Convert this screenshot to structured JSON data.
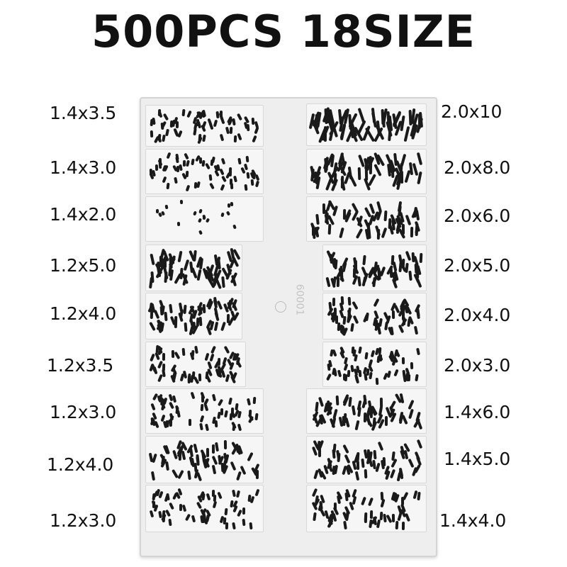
{
  "title": "500PCS 18SIZE",
  "tray_code": "60001",
  "left_sizes": [
    "1.4x3.5",
    "1.4x3.0",
    "1.4x2.0",
    "1.2x5.0",
    "1.2x4.0",
    "1.2x3.5",
    "1.2x3.0",
    "1.2x4.0",
    "1.2x3.0"
  ],
  "right_sizes": [
    "2.0x10",
    "2.0x8.0",
    "2.0x6.0",
    "2.0x5.0",
    "2.0x4.0",
    "2.0x3.0",
    "1.4x6.0",
    "1.4x5.0",
    "1.4x4.0"
  ],
  "colors": {
    "screw": "#1a1a1a",
    "tray": "#eeeeee"
  }
}
